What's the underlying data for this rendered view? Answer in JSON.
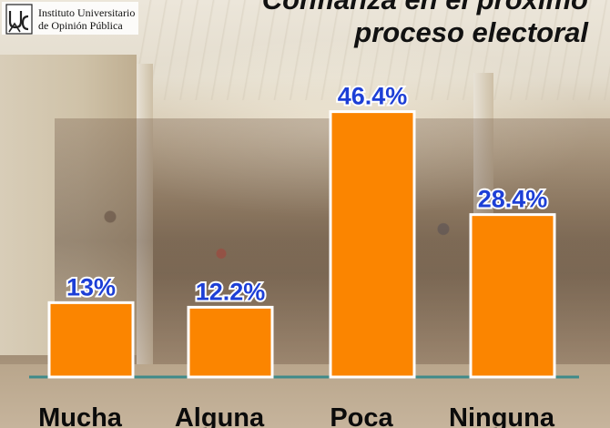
{
  "logo": {
    "mark": "UCA",
    "line1": "Instituto Universitario",
    "line2": "de Opinión Pública"
  },
  "title": {
    "line1": "Confianza en el próximo",
    "line2": "proceso electoral"
  },
  "chart_data": {
    "type": "bar",
    "title": "Confianza en el próximo proceso electoral",
    "categories": [
      "Mucha",
      "Alguna",
      "Poca",
      "Ninguna"
    ],
    "values": [
      13,
      12.2,
      46.4,
      28.4
    ],
    "value_labels": [
      "13%",
      "12.2%",
      "46.4%",
      "28.4%"
    ],
    "bar_color": "#fb8500",
    "label_color": "#1d3fd6",
    "ylim": [
      0,
      50
    ],
    "grid": false,
    "xlabel": "",
    "ylabel": ""
  }
}
